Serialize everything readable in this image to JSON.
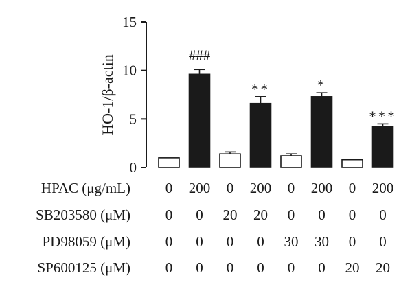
{
  "chart_data": {
    "type": "bar",
    "ylabel": "HO-1/β-actin",
    "ylim": [
      0,
      15
    ],
    "yticks": [
      0,
      5,
      10,
      15
    ],
    "values": [
      1.0,
      9.6,
      1.4,
      6.6,
      1.2,
      7.3,
      0.8,
      4.2
    ],
    "errors": [
      0.0,
      0.5,
      0.2,
      0.7,
      0.2,
      0.4,
      0.0,
      0.3
    ],
    "bar_colors": [
      "#ffffff",
      "#1a1a1a",
      "#ffffff",
      "#1a1a1a",
      "#ffffff",
      "#1a1a1a",
      "#ffffff",
      "#1a1a1a"
    ],
    "annotations": [
      "",
      "###",
      "",
      "**",
      "",
      "*",
      "",
      "***"
    ],
    "conditions": [
      {
        "label": "HPAC (μg/mL)",
        "values": [
          "0",
          "200",
          "0",
          "200",
          "0",
          "200",
          "0",
          "200"
        ]
      },
      {
        "label": "SB203580 (μM)",
        "values": [
          "0",
          "0",
          "20",
          "20",
          "0",
          "0",
          "0",
          "0"
        ]
      },
      {
        "label": "PD98059 (μM)",
        "values": [
          "0",
          "0",
          "0",
          "0",
          "30",
          "30",
          "0",
          "0"
        ]
      },
      {
        "label": "SP600125 (μM)",
        "values": [
          "0",
          "0",
          "0",
          "0",
          "0",
          "0",
          "20",
          "20"
        ]
      }
    ]
  }
}
